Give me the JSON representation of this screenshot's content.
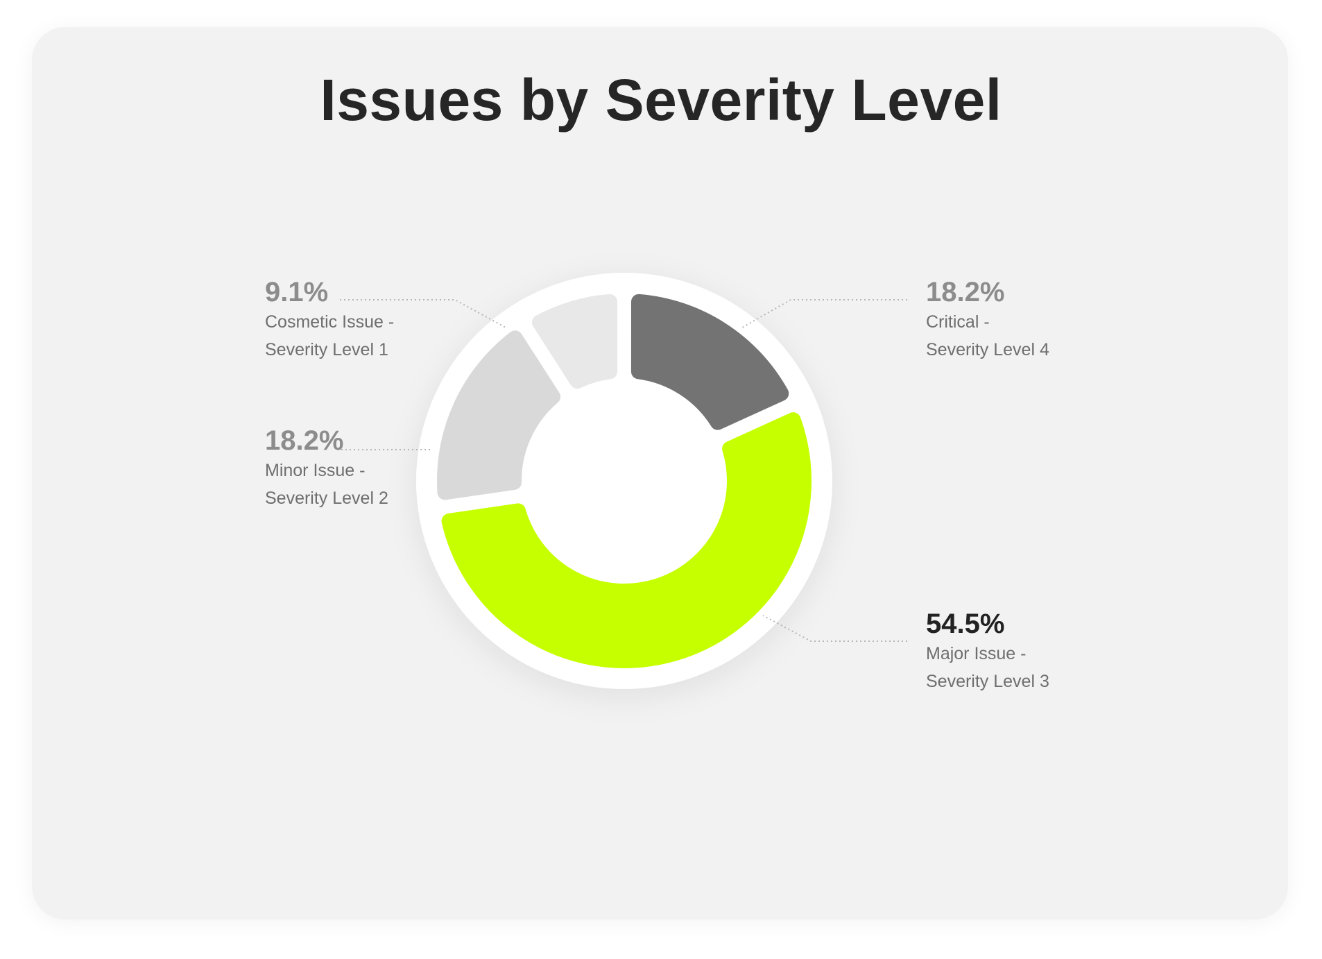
{
  "chart_data": {
    "type": "pie",
    "variant": "donut",
    "title": "Issues by Severity Level",
    "start": "top",
    "direction": "clockwise",
    "slices": [
      {
        "pct_label": "18.2%",
        "value": 18.2,
        "line1": "Critical -",
        "line2": "Severity Level 4",
        "color": "#737373"
      },
      {
        "pct_label": "54.5%",
        "value": 54.5,
        "line1": "Major Issue -",
        "line2": "Severity Level 3",
        "color": "#c6ff00"
      },
      {
        "pct_label": "18.2%",
        "value": 18.2,
        "line1": "Minor Issue -",
        "line2": "Severity Level 2",
        "color": "#d9d9d9"
      },
      {
        "pct_label": "9.1%",
        "value": 9.1,
        "line1": "Cosmetic Issue -",
        "line2": "Severity Level 1",
        "color": "#e8e8e8"
      }
    ],
    "highlighted_index": 1
  }
}
